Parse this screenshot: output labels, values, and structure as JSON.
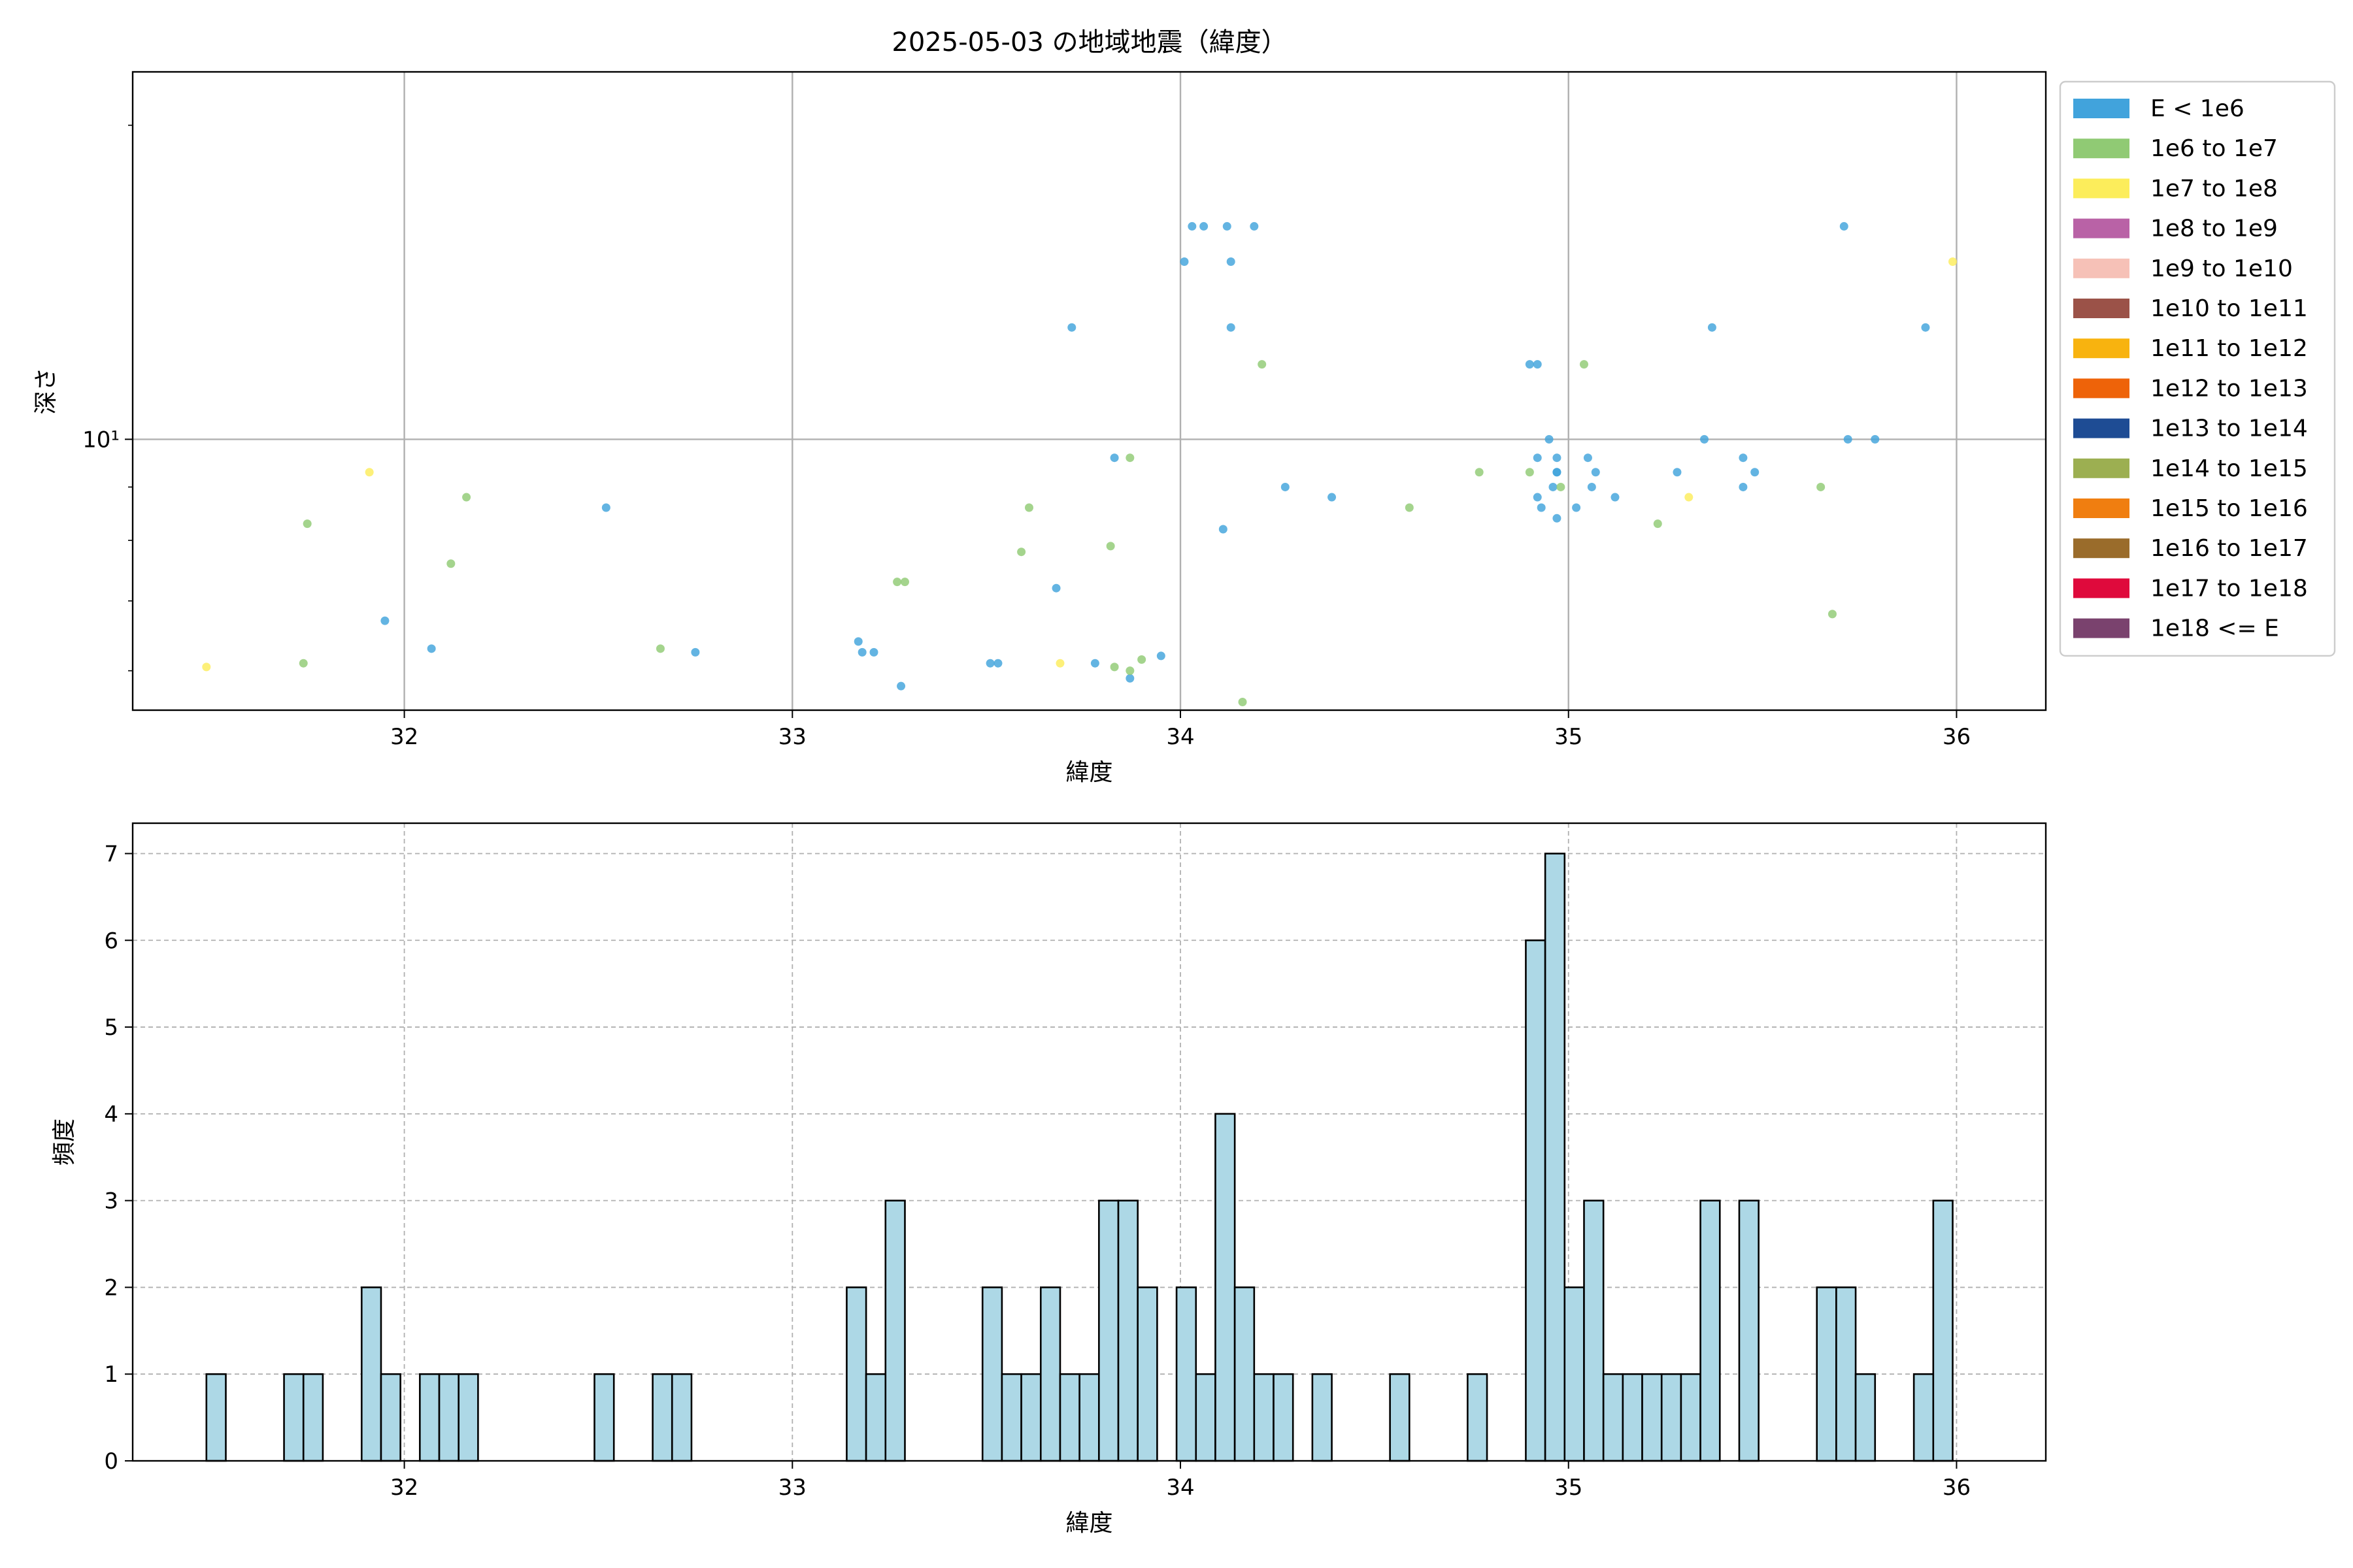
{
  "title": "2025-05-03 の地域地震（緯度）",
  "chart_data": [
    {
      "type": "scatter",
      "xlabel": "緯度",
      "ylabel": "深さ",
      "xlim": [
        31.3,
        36.23
      ],
      "ylim": [
        5.5,
        22.5
      ],
      "yscale": "log",
      "major_y_ticks": [
        {
          "value": 10,
          "label": "10¹"
        }
      ],
      "x_ticks": [
        32,
        33,
        34,
        35,
        36
      ],
      "grid": true,
      "legend_position": "outside-right",
      "legend": [
        {
          "label": "E < 1e6",
          "color": "#41a3dc"
        },
        {
          "label": "1e6 to 1e7",
          "color": "#90ca74"
        },
        {
          "label": "1e7 to 1e8",
          "color": "#fced5b"
        },
        {
          "label": "1e8 to 1e9",
          "color": "#b962a6"
        },
        {
          "label": "1e9 to 1e10",
          "color": "#f6c1b7"
        },
        {
          "label": "1e10 to 1e11",
          "color": "#9b5248"
        },
        {
          "label": "1e11 to 1e12",
          "color": "#f8b30f"
        },
        {
          "label": "1e12 to 1e13",
          "color": "#ee6309"
        },
        {
          "label": "1e13 to 1e14",
          "color": "#1e4c94"
        },
        {
          "label": "1e14 to 1e15",
          "color": "#9caf51"
        },
        {
          "label": "1e15 to 1e16",
          "color": "#f07e10"
        },
        {
          "label": "1e16 to 1e17",
          "color": "#9a6c2b"
        },
        {
          "label": "1e17 to 1e18",
          "color": "#df0a3c"
        },
        {
          "label": "1e18 <= E",
          "color": "#7a426e"
        }
      ],
      "series": [
        {
          "name": "E < 1e6",
          "points": [
            [
              31.95,
              6.7
            ],
            [
              32.07,
              6.3
            ],
            [
              32.52,
              8.6
            ],
            [
              32.75,
              6.25
            ],
            [
              33.17,
              6.4
            ],
            [
              33.18,
              6.25
            ],
            [
              33.21,
              6.25
            ],
            [
              33.28,
              5.8
            ],
            [
              33.51,
              6.1
            ],
            [
              33.53,
              6.1
            ],
            [
              33.68,
              7.2
            ],
            [
              33.72,
              12.8
            ],
            [
              33.78,
              6.1
            ],
            [
              33.83,
              9.6
            ],
            [
              33.87,
              5.9
            ],
            [
              33.95,
              6.2
            ],
            [
              34.01,
              14.8
            ],
            [
              34.03,
              16.0
            ],
            [
              34.06,
              16.0
            ],
            [
              34.11,
              8.2
            ],
            [
              34.12,
              16.0
            ],
            [
              34.13,
              14.8
            ],
            [
              34.13,
              12.8
            ],
            [
              34.19,
              16.0
            ],
            [
              34.27,
              9.0
            ],
            [
              34.39,
              8.8
            ],
            [
              34.9,
              11.8
            ],
            [
              34.92,
              11.8
            ],
            [
              34.92,
              9.6
            ],
            [
              34.92,
              8.8
            ],
            [
              34.93,
              8.6
            ],
            [
              34.95,
              10.0
            ],
            [
              34.96,
              9.0
            ],
            [
              34.97,
              9.6
            ],
            [
              34.97,
              9.3
            ],
            [
              34.97,
              9.3
            ],
            [
              34.97,
              8.4
            ],
            [
              35.02,
              8.6
            ],
            [
              35.05,
              9.6
            ],
            [
              35.06,
              9.0
            ],
            [
              35.07,
              9.3
            ],
            [
              35.12,
              8.8
            ],
            [
              35.28,
              9.3
            ],
            [
              35.35,
              10.0
            ],
            [
              35.37,
              12.8
            ],
            [
              35.45,
              9.6
            ],
            [
              35.45,
              9.0
            ],
            [
              35.48,
              9.3
            ],
            [
              35.71,
              16.0
            ],
            [
              35.72,
              10.0
            ],
            [
              35.79,
              10.0
            ],
            [
              35.92,
              12.8
            ]
          ]
        },
        {
          "name": "1e6 to 1e7",
          "points": [
            [
              31.74,
              6.1
            ],
            [
              31.75,
              8.3
            ],
            [
              32.12,
              7.6
            ],
            [
              32.16,
              8.8
            ],
            [
              32.66,
              6.3
            ],
            [
              33.27,
              7.3
            ],
            [
              33.29,
              7.3
            ],
            [
              33.59,
              7.8
            ],
            [
              33.61,
              8.6
            ],
            [
              33.82,
              7.9
            ],
            [
              33.83,
              6.05
            ],
            [
              33.87,
              6.0
            ],
            [
              33.87,
              9.6
            ],
            [
              33.9,
              6.15
            ],
            [
              34.16,
              5.6
            ],
            [
              34.21,
              11.8
            ],
            [
              34.59,
              8.6
            ],
            [
              34.77,
              9.3
            ],
            [
              34.9,
              9.3
            ],
            [
              34.98,
              9.0
            ],
            [
              35.04,
              11.8
            ],
            [
              35.23,
              8.3
            ],
            [
              35.65,
              9.0
            ],
            [
              35.68,
              6.8
            ]
          ]
        },
        {
          "name": "1e7 to 1e8",
          "points": [
            [
              31.49,
              6.05
            ],
            [
              31.91,
              9.3
            ],
            [
              33.69,
              6.1
            ],
            [
              35.31,
              8.8
            ],
            [
              35.99,
              14.8
            ]
          ]
        }
      ]
    },
    {
      "type": "bar",
      "xlabel": "緯度",
      "ylabel": "頻度",
      "xlim": [
        31.3,
        36.23
      ],
      "ylim": [
        0,
        7.35
      ],
      "x_ticks": [
        32,
        33,
        34,
        35,
        36
      ],
      "y_ticks": [
        0,
        1,
        2,
        3,
        4,
        5,
        6,
        7
      ],
      "grid": true,
      "bin_start": 31.49,
      "bin_width": 0.05,
      "bar_color": "#add8e6",
      "bins": [
        [
          31.49,
          1
        ],
        [
          31.69,
          1
        ],
        [
          31.74,
          1
        ],
        [
          31.89,
          2
        ],
        [
          31.94,
          1
        ],
        [
          32.04,
          1
        ],
        [
          32.09,
          1
        ],
        [
          32.14,
          1
        ],
        [
          32.49,
          1
        ],
        [
          32.64,
          1
        ],
        [
          32.69,
          1
        ],
        [
          33.14,
          2
        ],
        [
          33.19,
          1
        ],
        [
          33.24,
          3
        ],
        [
          33.49,
          2
        ],
        [
          33.54,
          1
        ],
        [
          33.59,
          1
        ],
        [
          33.64,
          2
        ],
        [
          33.69,
          1
        ],
        [
          33.74,
          1
        ],
        [
          33.79,
          3
        ],
        [
          33.84,
          3
        ],
        [
          33.89,
          2
        ],
        [
          33.99,
          2
        ],
        [
          34.04,
          1
        ],
        [
          34.09,
          4
        ],
        [
          34.14,
          2
        ],
        [
          34.19,
          1
        ],
        [
          34.24,
          1
        ],
        [
          34.34,
          1
        ],
        [
          34.54,
          1
        ],
        [
          34.74,
          1
        ],
        [
          34.89,
          6
        ],
        [
          34.94,
          7
        ],
        [
          34.99,
          2
        ],
        [
          35.04,
          3
        ],
        [
          35.09,
          1
        ],
        [
          35.14,
          1
        ],
        [
          35.19,
          1
        ],
        [
          35.24,
          1
        ],
        [
          35.29,
          1
        ],
        [
          35.34,
          3
        ],
        [
          35.44,
          3
        ],
        [
          35.64,
          2
        ],
        [
          35.69,
          2
        ],
        [
          35.74,
          1
        ],
        [
          35.89,
          1
        ],
        [
          35.94,
          3
        ]
      ]
    }
  ]
}
